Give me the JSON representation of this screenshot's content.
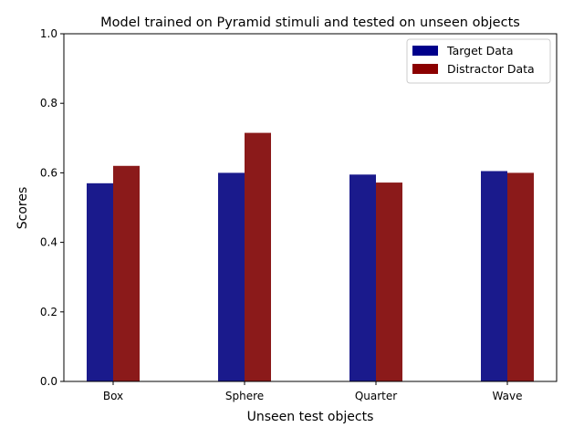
{
  "chart_data": {
    "type": "bar",
    "title": "Model trained on Pyramid stimuli and tested on unseen objects",
    "xlabel": "Unseen test objects",
    "ylabel": "Scores",
    "ylim": [
      0,
      1.0
    ],
    "yticks": [
      "0.0",
      "0.2",
      "0.4",
      "0.6",
      "0.8",
      "1.0"
    ],
    "categories": [
      "Box",
      "Sphere",
      "Quarter",
      "Wave"
    ],
    "series": [
      {
        "name": "Target Data",
        "color": "#1a1a8c",
        "legend_color": "#00008b",
        "values": [
          0.57,
          0.6,
          0.595,
          0.605
        ]
      },
      {
        "name": "Distractor Data",
        "color": "#8b1a1a",
        "legend_color": "#8b0000",
        "values": [
          0.62,
          0.715,
          0.572,
          0.6
        ]
      }
    ],
    "legend_position": "top-right",
    "grid": false
  }
}
